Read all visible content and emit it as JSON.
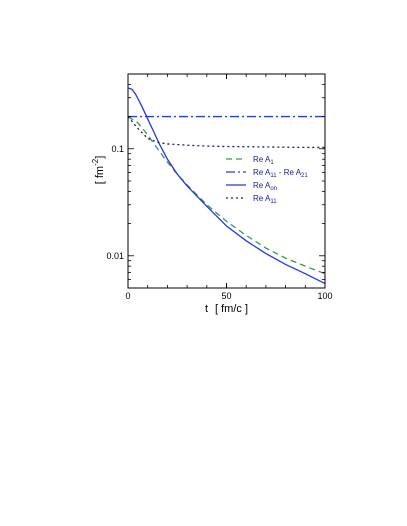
{
  "chart_data": {
    "type": "line",
    "xlabel_main": "t",
    "xlabel_unit": "[ fm/c ]",
    "ylabel_base": "[ fm",
    "ylabel_exp": "-2",
    "ylabel_end": "]",
    "xlim": [
      0,
      100
    ],
    "ylim": [
      0.005,
      0.5
    ],
    "yscale": "log",
    "grid": false,
    "legend_position": "center-right",
    "x_ticks": [
      {
        "value": 0,
        "label": "0"
      },
      {
        "value": 50,
        "label": "50"
      },
      {
        "value": 100,
        "label": "100"
      }
    ],
    "y_ticks": [
      {
        "value": 0.1,
        "label": "0.1"
      },
      {
        "value": 0.01,
        "label": "0.01"
      }
    ],
    "series": [
      {
        "label_main": "Re A",
        "label_sub": "1",
        "label_main2": "",
        "label_sub2": "",
        "color": "#3a9a4a",
        "dash": "6,4",
        "x": [
          0,
          5,
          10,
          15,
          20,
          25,
          30,
          40,
          50,
          60,
          70,
          80,
          90,
          100
        ],
        "y": [
          0.2,
          0.175,
          0.135,
          0.1,
          0.075,
          0.058,
          0.046,
          0.03,
          0.021,
          0.0155,
          0.0118,
          0.0095,
          0.008,
          0.0068
        ]
      },
      {
        "label_main": "Re A",
        "label_sub": "11",
        "label_main2": " - Re A",
        "label_sub2": "21",
        "color": "#2a3fd0",
        "dash": "9,3,2,3",
        "x": [
          0,
          100
        ],
        "y": [
          0.2,
          0.2
        ]
      },
      {
        "label_main": "Re A",
        "label_sub": "on",
        "label_main2": "",
        "label_sub2": "",
        "color": "#2438d6",
        "dash": "",
        "x": [
          0,
          2,
          4,
          7,
          10,
          13,
          16,
          20,
          25,
          30,
          40,
          50,
          60,
          70,
          80,
          90,
          100
        ],
        "y": [
          0.37,
          0.36,
          0.32,
          0.25,
          0.19,
          0.145,
          0.11,
          0.08,
          0.058,
          0.045,
          0.029,
          0.019,
          0.0138,
          0.0105,
          0.0083,
          0.0068,
          0.0055
        ]
      },
      {
        "label_main": "Re A",
        "label_sub": "11",
        "label_main2": "",
        "label_sub2": "",
        "color": "#1a1a6e",
        "dash": "2,3",
        "x": [
          0,
          5,
          10,
          15,
          20,
          30,
          40,
          50,
          60,
          70,
          80,
          90,
          100
        ],
        "y": [
          0.2,
          0.155,
          0.125,
          0.115,
          0.111,
          0.108,
          0.106,
          0.105,
          0.1045,
          0.104,
          0.1035,
          0.103,
          0.103
        ]
      }
    ]
  }
}
